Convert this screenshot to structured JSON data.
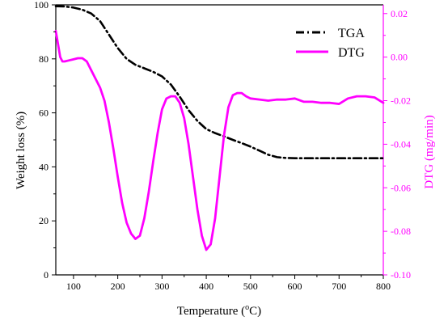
{
  "chart_data": {
    "type": "line",
    "xlabel": "Temperature (°C)",
    "xlabel_parts": {
      "prefix": "Temperature (",
      "superscript": "o",
      "suffix": "C)"
    },
    "ylabel": "Weight loss (%)",
    "y2label": "DTG (mg/min)",
    "xlim": [
      60,
      800
    ],
    "ylim": [
      0,
      100
    ],
    "y2lim": [
      -0.1,
      0.024
    ],
    "x_ticks": [
      "100",
      "200",
      "300",
      "400",
      "500",
      "600",
      "700",
      "800"
    ],
    "y_ticks": [
      "0",
      "20",
      "40",
      "60",
      "80",
      "100"
    ],
    "y2_ticks": [
      "-0.10",
      "-0.08",
      "-0.06",
      "-0.04",
      "-0.02",
      "0.00",
      "0.02"
    ],
    "legend_position": "top-right",
    "grid": false,
    "colors": {
      "tga": "#000000",
      "dtg": "#ff00ff",
      "right_axis": "#ff00ff"
    },
    "series": [
      {
        "name": "TGA",
        "axis": "left",
        "style": "dash-dot",
        "x": [
          60,
          80,
          100,
          120,
          140,
          160,
          180,
          200,
          220,
          240,
          260,
          280,
          300,
          320,
          340,
          360,
          380,
          400,
          420,
          440,
          460,
          480,
          500,
          520,
          540,
          560,
          580,
          600,
          650,
          700,
          750,
          800
        ],
        "y": [
          99.5,
          99.4,
          99.0,
          98.2,
          96.8,
          94.0,
          89.0,
          84.0,
          80.0,
          77.8,
          76.5,
          75.2,
          73.5,
          70.5,
          66.0,
          61.0,
          57.0,
          54.0,
          52.5,
          51.3,
          50.0,
          48.8,
          47.5,
          46.0,
          44.5,
          43.6,
          43.3,
          43.2,
          43.2,
          43.2,
          43.2,
          43.2
        ]
      },
      {
        "name": "DTG",
        "axis": "right",
        "style": "solid",
        "x": [
          60,
          65,
          70,
          75,
          80,
          90,
          100,
          110,
          120,
          130,
          140,
          150,
          160,
          170,
          180,
          190,
          200,
          210,
          220,
          230,
          240,
          250,
          260,
          270,
          280,
          290,
          300,
          310,
          320,
          330,
          340,
          350,
          360,
          370,
          380,
          390,
          400,
          410,
          420,
          430,
          440,
          450,
          460,
          470,
          480,
          490,
          500,
          520,
          540,
          560,
          580,
          600,
          620,
          640,
          660,
          680,
          700,
          720,
          740,
          760,
          780,
          800
        ],
        "y": [
          0.012,
          0.006,
          0.0,
          -0.002,
          -0.002,
          -0.0015,
          -0.001,
          -0.0005,
          -0.0005,
          -0.002,
          -0.006,
          -0.01,
          -0.014,
          -0.02,
          -0.03,
          -0.042,
          -0.055,
          -0.067,
          -0.076,
          -0.081,
          -0.0835,
          -0.082,
          -0.074,
          -0.062,
          -0.048,
          -0.035,
          -0.024,
          -0.019,
          -0.018,
          -0.018,
          -0.021,
          -0.028,
          -0.04,
          -0.055,
          -0.07,
          -0.082,
          -0.0885,
          -0.086,
          -0.074,
          -0.055,
          -0.036,
          -0.023,
          -0.0175,
          -0.0165,
          -0.0165,
          -0.018,
          -0.019,
          -0.0195,
          -0.02,
          -0.0195,
          -0.0195,
          -0.019,
          -0.0205,
          -0.0205,
          -0.021,
          -0.021,
          -0.0215,
          -0.019,
          -0.018,
          -0.018,
          -0.0185,
          -0.021
        ]
      }
    ]
  }
}
